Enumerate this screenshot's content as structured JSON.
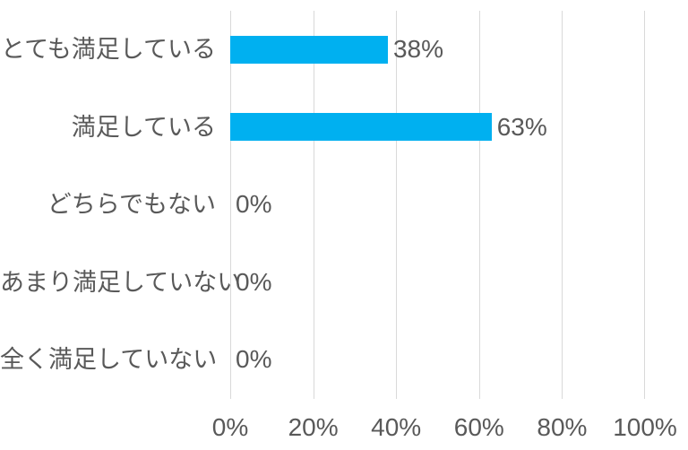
{
  "chart_data": {
    "type": "bar",
    "orientation": "horizontal",
    "title": "",
    "xlabel": "",
    "ylabel": "",
    "categories": [
      "とても満足している",
      "満足している",
      "どちらでもない",
      "あまり満足していない",
      "全く満足していない"
    ],
    "values": [
      38,
      63,
      0,
      0,
      0
    ],
    "data_labels": [
      "38%",
      "63%",
      "0%",
      "0%",
      "0%"
    ],
    "x_axis": {
      "tick_labels": [
        "0%",
        "20%",
        "40%",
        "60%",
        "80%",
        "100%"
      ],
      "tick_values": [
        0,
        20,
        40,
        60,
        80,
        100
      ],
      "range": [
        0,
        100
      ]
    },
    "grid": true,
    "legend": false,
    "colors": {
      "bar": "#00B0F0",
      "gridline": "#D9D9D9",
      "text": "#595959",
      "background": "#FFFFFF"
    }
  }
}
